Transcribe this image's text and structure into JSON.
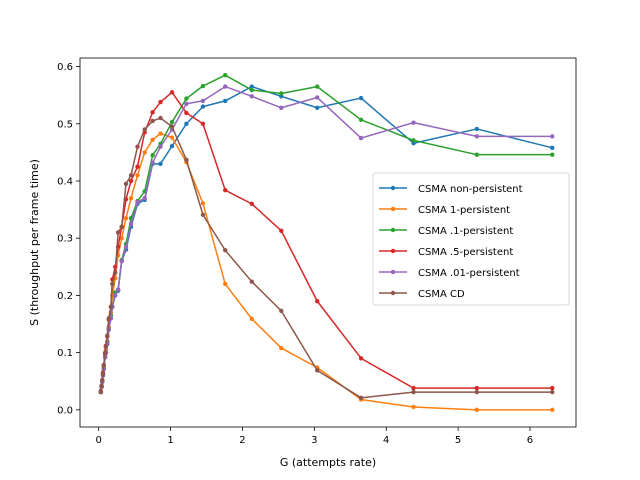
{
  "chart_data": {
    "type": "line",
    "title": "",
    "xlabel": "G (attempts rate)",
    "ylabel": "S (throughput per frame time)",
    "xlim": [
      -0.26,
      6.64
    ],
    "ylim": [
      -0.03,
      0.615
    ],
    "xticks": [
      0,
      1,
      2,
      3,
      4,
      5,
      6
    ],
    "yticks": [
      0.0,
      0.1,
      0.2,
      0.3,
      0.4,
      0.5,
      0.6
    ],
    "grid": false,
    "legend_position": "center-right",
    "x": [
      0.03,
      0.04,
      0.05,
      0.06,
      0.07,
      0.09,
      0.1,
      0.12,
      0.14,
      0.17,
      0.19,
      0.23,
      0.27,
      0.32,
      0.38,
      0.45,
      0.54,
      0.64,
      0.75,
      0.86,
      1.02,
      1.22,
      1.45,
      1.76,
      2.13,
      2.54,
      3.04,
      3.65,
      4.38,
      5.26,
      6.31
    ],
    "series": [
      {
        "name": "CSMA non-persistent",
        "color": "#1f77b4",
        "values": [
          0.031,
          0.04,
          0.049,
          0.06,
          0.071,
          0.092,
          0.1,
          0.115,
          0.14,
          0.16,
          0.18,
          0.2,
          0.208,
          0.26,
          0.28,
          0.32,
          0.36,
          0.367,
          0.43,
          0.43,
          0.461,
          0.5,
          0.53,
          0.54,
          0.565,
          0.548,
          0.528,
          0.545,
          0.466,
          0.491,
          0.458
        ]
      },
      {
        "name": "CSMA 1-persistent",
        "color": "#ff7f0e",
        "values": [
          0.031,
          0.04,
          0.05,
          0.062,
          0.075,
          0.095,
          0.105,
          0.12,
          0.145,
          0.17,
          0.2,
          0.23,
          0.27,
          0.3,
          0.335,
          0.37,
          0.41,
          0.45,
          0.472,
          0.483,
          0.476,
          0.433,
          0.361,
          0.22,
          0.159,
          0.108,
          0.074,
          0.018,
          0.005,
          0.0,
          0.0
        ]
      },
      {
        "name": "CSMA .1-persistent",
        "color": "#2ca02c",
        "values": [
          0.031,
          0.04,
          0.049,
          0.06,
          0.072,
          0.092,
          0.1,
          0.118,
          0.142,
          0.165,
          0.18,
          0.205,
          0.21,
          0.262,
          0.29,
          0.335,
          0.365,
          0.382,
          0.445,
          0.465,
          0.503,
          0.544,
          0.566,
          0.585,
          0.559,
          0.553,
          0.565,
          0.507,
          0.471,
          0.446,
          0.446
        ]
      },
      {
        "name": "CSMA .5-persistent",
        "color": "#d62728",
        "values": [
          0.033,
          0.042,
          0.052,
          0.065,
          0.078,
          0.098,
          0.112,
          0.128,
          0.158,
          0.18,
          0.228,
          0.25,
          0.285,
          0.32,
          0.368,
          0.4,
          0.425,
          0.485,
          0.52,
          0.538,
          0.555,
          0.519,
          0.5,
          0.384,
          0.36,
          0.313,
          0.19,
          0.09,
          0.038,
          0.038,
          0.038
        ]
      },
      {
        "name": "CSMA .01-persistent",
        "color": "#9467bd",
        "values": [
          0.031,
          0.04,
          0.049,
          0.06,
          0.071,
          0.092,
          0.1,
          0.116,
          0.14,
          0.16,
          0.18,
          0.2,
          0.21,
          0.26,
          0.285,
          0.325,
          0.363,
          0.37,
          0.432,
          0.46,
          0.49,
          0.535,
          0.54,
          0.565,
          0.548,
          0.528,
          0.546,
          0.475,
          0.502,
          0.478,
          0.478
        ]
      },
      {
        "name": "CSMA CD",
        "color": "#8c564b",
        "values": [
          0.031,
          0.042,
          0.052,
          0.063,
          0.078,
          0.1,
          0.11,
          0.13,
          0.16,
          0.18,
          0.22,
          0.24,
          0.31,
          0.32,
          0.395,
          0.41,
          0.46,
          0.49,
          0.505,
          0.51,
          0.495,
          0.437,
          0.341,
          0.279,
          0.224,
          0.173,
          0.069,
          0.021,
          0.031,
          0.031,
          0.031
        ]
      }
    ]
  }
}
